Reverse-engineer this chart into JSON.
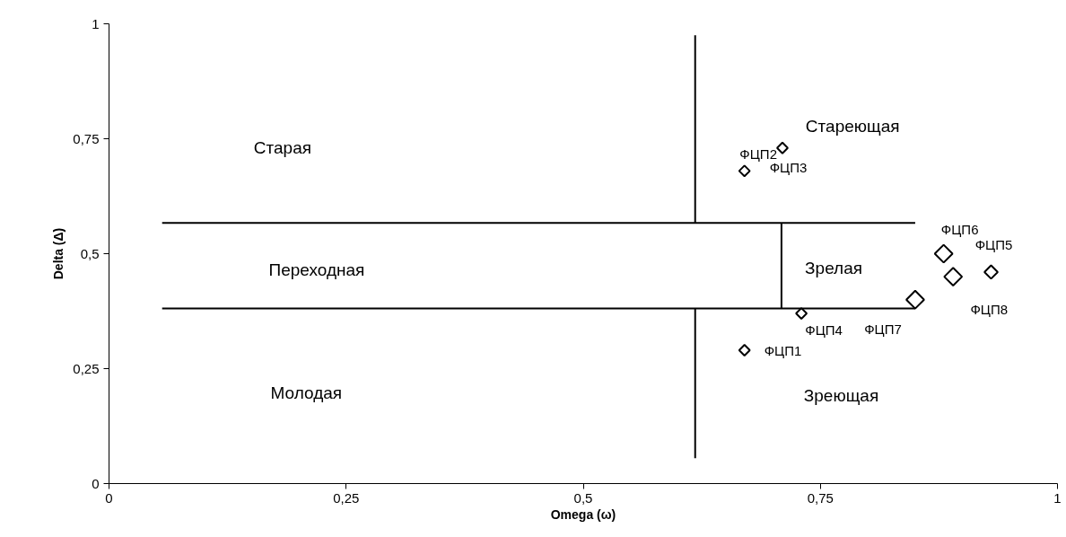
{
  "chart_data": {
    "type": "bubble",
    "xlabel": "Omega (ω)",
    "ylabel": "Delta (Δ)",
    "xlim": [
      0,
      1
    ],
    "ylim": [
      0,
      1
    ],
    "xticks": [
      0,
      {
        "value": 0.25,
        "label": "0,25"
      },
      {
        "value": 0.5,
        "label": "0,5"
      },
      {
        "value": 0.75,
        "label": "0,75"
      },
      1
    ],
    "yticks": [
      0,
      {
        "value": 0.25,
        "label": "0,25"
      },
      {
        "value": 0.5,
        "label": "0,5"
      },
      {
        "value": 0.75,
        "label": "0,75"
      },
      1
    ],
    "grid": false,
    "series": [
      {
        "marker": "diamond",
        "color": "#000000",
        "x": [
          0.67,
          0.71,
          0.67,
          0.73,
          0.93,
          0.88,
          0.85,
          0.89
        ],
        "values": [
          0.29,
          0.73,
          0.68,
          0.37,
          0.46,
          0.5,
          0.4,
          0.45
        ],
        "sizes": [
          0.36,
          0.36,
          0.36,
          0.36,
          0.56,
          1,
          1,
          1
        ]
      },
      {
        "type": "line",
        "color": "#000000",
        "x": [
          0.618,
          0.618
        ],
        "values": [
          0.975,
          0.567
        ]
      },
      {
        "type": "line",
        "color": "#000000",
        "x": [
          0.056,
          0.85
        ],
        "values": [
          0.567,
          0.567
        ]
      },
      {
        "type": "line",
        "color": "#000000",
        "x": [
          0.056,
          0.85
        ],
        "values": [
          0.381,
          0.381
        ]
      },
      {
        "type": "line",
        "color": "#000000",
        "x": [
          0.709,
          0.709
        ],
        "values": [
          0.381,
          0.567
        ]
      },
      {
        "type": "line",
        "color": "#000000",
        "x": [
          0.618,
          0.618
        ],
        "values": [
          0.381,
          0.055
        ]
      }
    ],
    "annotations": [
      "Старая",
      "Переходная",
      "Молодая",
      "Стареющая",
      "Зрелая",
      "Зреющая",
      {
        "text": "ФЦП1",
        "x": 0.67,
        "y": 0.29
      },
      {
        "text": "ФЦП2",
        "x": 0.71,
        "y": 0.73
      },
      {
        "text": "ФЦП3",
        "x": 0.67,
        "y": 0.68
      },
      {
        "text": "ФЦП4",
        "x": 0.73,
        "y": 0.37
      },
      {
        "text": "ФЦП5",
        "x": 0.93,
        "y": 0.46
      },
      {
        "text": "ФЦП6",
        "x": 0.88,
        "y": 0.5
      },
      {
        "text": "ФЦП7",
        "x": 0.85,
        "y": 0.4
      },
      {
        "text": "ФЦП8",
        "x": 0.89,
        "y": 0.45
      }
    ]
  }
}
